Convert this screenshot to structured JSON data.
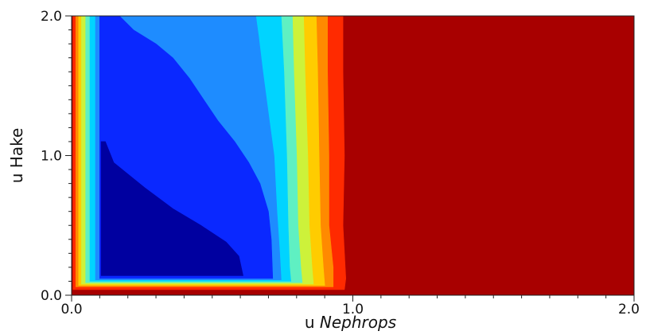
{
  "chart_data": {
    "type": "heatmap",
    "subtype": "filled-contour",
    "title": "",
    "xlabel": {
      "prefix": "u ",
      "italic": "Nephrops"
    },
    "ylabel": "u Hake",
    "xlim": [
      0.0,
      2.0
    ],
    "ylim": [
      0.0,
      2.0
    ],
    "x_ticks": [
      {
        "value": 0.0,
        "label": "0.0"
      },
      {
        "value": 1.0,
        "label": "1.0"
      },
      {
        "value": 2.0,
        "label": "2.0"
      }
    ],
    "y_ticks": [
      {
        "value": 0.0,
        "label": "0.0"
      },
      {
        "value": 1.0,
        "label": "1.0"
      },
      {
        "value": 2.0,
        "label": "2.0"
      }
    ],
    "minor_tick_step": 0.1,
    "grid": false,
    "colormap": "jet (dark blue = low, dark red = high)",
    "levels": [
      {
        "color": "#a80000",
        "region": [
          [
            0.0,
            0.0
          ],
          [
            2.0,
            0.0
          ],
          [
            2.0,
            2.0
          ],
          [
            0.0,
            2.0
          ]
        ]
      },
      {
        "color": "#ff2a00",
        "region": [
          [
            0.005,
            0.04
          ],
          [
            0.97,
            0.04
          ],
          [
            0.975,
            0.12
          ],
          [
            0.965,
            0.5
          ],
          [
            0.97,
            1.0
          ],
          [
            0.965,
            1.6
          ],
          [
            0.965,
            2.0
          ],
          [
            0.005,
            2.0
          ]
        ]
      },
      {
        "color": "#ff8a00",
        "region": [
          [
            0.015,
            0.06
          ],
          [
            0.93,
            0.06
          ],
          [
            0.93,
            0.2
          ],
          [
            0.915,
            0.5
          ],
          [
            0.915,
            1.0
          ],
          [
            0.91,
            1.6
          ],
          [
            0.91,
            2.0
          ],
          [
            0.015,
            2.0
          ]
        ]
      },
      {
        "color": "#ffcc00",
        "region": [
          [
            0.025,
            0.07
          ],
          [
            0.9,
            0.07
          ],
          [
            0.895,
            0.2
          ],
          [
            0.885,
            0.5
          ],
          [
            0.88,
            1.0
          ],
          [
            0.875,
            1.6
          ],
          [
            0.87,
            2.0
          ],
          [
            0.025,
            2.0
          ]
        ]
      },
      {
        "color": "#cdf23a",
        "region": [
          [
            0.035,
            0.08
          ],
          [
            0.86,
            0.08
          ],
          [
            0.855,
            0.2
          ],
          [
            0.845,
            0.5
          ],
          [
            0.84,
            1.0
          ],
          [
            0.83,
            1.6
          ],
          [
            0.825,
            2.0
          ],
          [
            0.035,
            2.0
          ]
        ]
      },
      {
        "color": "#5ff0c2",
        "region": [
          [
            0.05,
            0.09
          ],
          [
            0.82,
            0.09
          ],
          [
            0.815,
            0.2
          ],
          [
            0.805,
            0.5
          ],
          [
            0.8,
            1.0
          ],
          [
            0.79,
            1.6
          ],
          [
            0.785,
            2.0
          ],
          [
            0.05,
            2.0
          ]
        ]
      },
      {
        "color": "#00d4ff",
        "region": [
          [
            0.065,
            0.1
          ],
          [
            0.78,
            0.1
          ],
          [
            0.775,
            0.2
          ],
          [
            0.77,
            0.5
          ],
          [
            0.765,
            1.0
          ],
          [
            0.755,
            1.6
          ],
          [
            0.745,
            2.0
          ],
          [
            0.065,
            2.0
          ]
        ]
      },
      {
        "color": "#1e8cff",
        "region": [
          [
            0.085,
            0.11
          ],
          [
            0.745,
            0.11
          ],
          [
            0.74,
            0.3
          ],
          [
            0.73,
            0.6
          ],
          [
            0.72,
            1.0
          ],
          [
            0.7,
            1.3
          ],
          [
            0.68,
            1.6
          ],
          [
            0.665,
            1.85
          ],
          [
            0.655,
            2.0
          ],
          [
            0.085,
            2.0
          ]
        ]
      },
      {
        "color": "#0a28ff",
        "region": [
          [
            0.1,
            0.12
          ],
          [
            0.715,
            0.12
          ],
          [
            0.71,
            0.4
          ],
          [
            0.7,
            0.6
          ],
          [
            0.67,
            0.8
          ],
          [
            0.63,
            0.95
          ],
          [
            0.58,
            1.1
          ],
          [
            0.52,
            1.25
          ],
          [
            0.47,
            1.4
          ],
          [
            0.42,
            1.55
          ],
          [
            0.36,
            1.7
          ],
          [
            0.3,
            1.8
          ],
          [
            0.22,
            1.9
          ],
          [
            0.17,
            2.0
          ],
          [
            0.1,
            2.0
          ]
        ]
      },
      {
        "color": "#0000a0",
        "region": [
          [
            0.105,
            0.14
          ],
          [
            0.61,
            0.14
          ],
          [
            0.595,
            0.28
          ],
          [
            0.55,
            0.38
          ],
          [
            0.46,
            0.5
          ],
          [
            0.36,
            0.62
          ],
          [
            0.26,
            0.77
          ],
          [
            0.15,
            0.95
          ],
          [
            0.12,
            1.1
          ],
          [
            0.105,
            1.1
          ]
        ]
      }
    ]
  }
}
